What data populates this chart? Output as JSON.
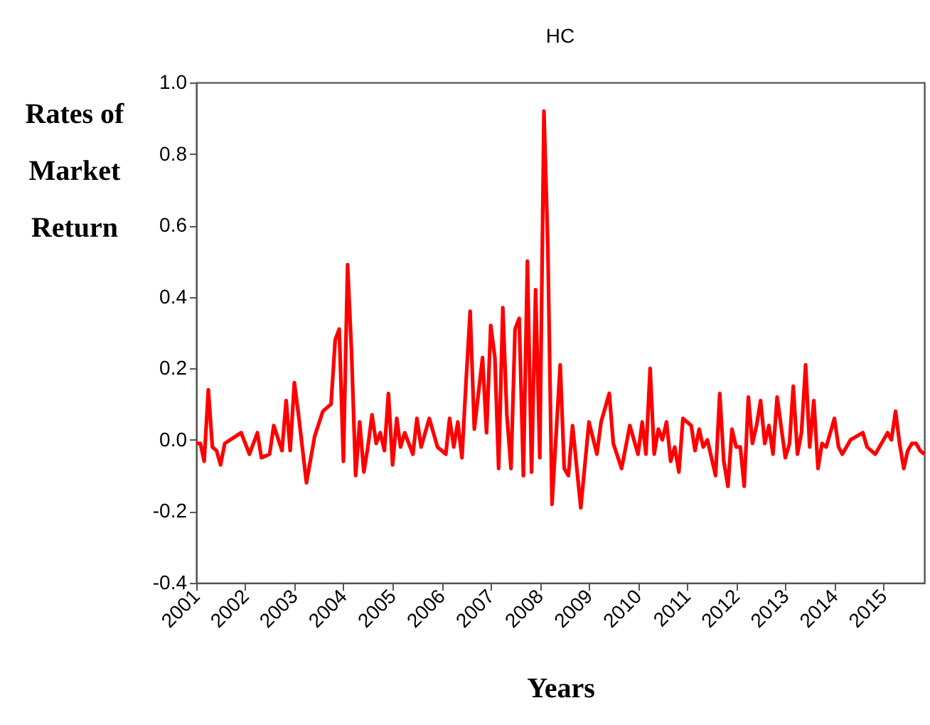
{
  "chart_data": {
    "type": "line",
    "title": "HC",
    "xlabel": "Years",
    "ylabel": "Rates of Market Return",
    "x": [
      "2001-01",
      "2001-02",
      "2001-03",
      "2001-04",
      "2001-05",
      "2001-06",
      "2001-07",
      "2001-08",
      "2001-12",
      "2002-02",
      "2002-04",
      "2002-05",
      "2002-07",
      "2002-08",
      "2002-10",
      "2002-11",
      "2002-12",
      "2003-01",
      "2003-02",
      "2003-04",
      "2003-06",
      "2003-08",
      "2003-10",
      "2003-11",
      "2003-12",
      "2004-01",
      "2004-02",
      "2004-03",
      "2004-04",
      "2004-05",
      "2004-06",
      "2004-07",
      "2004-08",
      "2004-09",
      "2004-10",
      "2004-11",
      "2004-12",
      "2005-01",
      "2005-02",
      "2005-03",
      "2005-04",
      "2005-06",
      "2005-07",
      "2005-08",
      "2005-10",
      "2005-12",
      "2006-02",
      "2006-03",
      "2006-04",
      "2006-05",
      "2006-06",
      "2006-07",
      "2006-08",
      "2006-09",
      "2006-11",
      "2006-12",
      "2007-01",
      "2007-02",
      "2007-03",
      "2007-04",
      "2007-05",
      "2007-06",
      "2007-07",
      "2007-08",
      "2007-09",
      "2007-10",
      "2007-11",
      "2007-12",
      "2008-01",
      "2008-02",
      "2008-03",
      "2008-04",
      "2008-06",
      "2008-07",
      "2008-08",
      "2008-09",
      "2008-11",
      "2009-01",
      "2009-03",
      "2009-04",
      "2009-06",
      "2009-07",
      "2009-09",
      "2009-11",
      "2010-01",
      "2010-02",
      "2010-03",
      "2010-04",
      "2010-05",
      "2010-06",
      "2010-07",
      "2010-08",
      "2010-09",
      "2010-10",
      "2010-11",
      "2010-12",
      "2011-02",
      "2011-03",
      "2011-04",
      "2011-05",
      "2011-06",
      "2011-08",
      "2011-09",
      "2011-10",
      "2011-11",
      "2011-12",
      "2012-01",
      "2012-02",
      "2012-03",
      "2012-04",
      "2012-05",
      "2012-06",
      "2012-07",
      "2012-08",
      "2012-09",
      "2012-10",
      "2012-11",
      "2013-01",
      "2013-02",
      "2013-03",
      "2013-04",
      "2013-05",
      "2013-06",
      "2013-07",
      "2013-08",
      "2013-09",
      "2013-10",
      "2013-11",
      "2014-01",
      "2014-02",
      "2014-03",
      "2014-05",
      "2014-08",
      "2014-09",
      "2014-11",
      "2015-02",
      "2015-03",
      "2015-04",
      "2015-05",
      "2015-06",
      "2015-07",
      "2015-08",
      "2015-09",
      "2015-10",
      "2015-11"
    ],
    "series": [
      {
        "color": "#ff0000",
        "values": [
          -0.01,
          -0.01,
          -0.06,
          0.14,
          -0.02,
          -0.03,
          -0.07,
          -0.01,
          0.02,
          -0.04,
          0.02,
          -0.05,
          -0.04,
          0.04,
          -0.03,
          0.11,
          -0.03,
          0.16,
          0.07,
          -0.12,
          0.01,
          0.08,
          0.1,
          0.28,
          0.31,
          -0.06,
          0.49,
          0.25,
          -0.1,
          0.05,
          -0.09,
          -0.02,
          0.07,
          -0.01,
          0.02,
          -0.03,
          0.13,
          -0.07,
          0.06,
          -0.02,
          0.02,
          -0.04,
          0.06,
          -0.02,
          0.06,
          -0.02,
          -0.04,
          0.06,
          -0.02,
          0.05,
          -0.05,
          0.16,
          0.36,
          0.03,
          0.23,
          0.02,
          0.32,
          0.23,
          -0.08,
          0.37,
          0.07,
          -0.08,
          0.31,
          0.34,
          -0.1,
          0.5,
          -0.09,
          0.42,
          -0.05,
          0.92,
          0.54,
          -0.18,
          0.21,
          -0.08,
          -0.1,
          0.04,
          -0.19,
          0.05,
          -0.04,
          0.05,
          0.13,
          -0.01,
          -0.08,
          0.04,
          -0.04,
          0.05,
          -0.04,
          0.2,
          -0.04,
          0.03,
          0.0,
          0.05,
          -0.06,
          -0.02,
          -0.09,
          0.06,
          0.04,
          -0.03,
          0.03,
          -0.02,
          0.0,
          -0.1,
          0.13,
          -0.06,
          -0.13,
          0.03,
          -0.02,
          -0.02,
          -0.13,
          0.12,
          -0.01,
          0.04,
          0.11,
          -0.01,
          0.04,
          -0.04,
          0.12,
          -0.05,
          -0.01,
          0.15,
          -0.04,
          0.02,
          0.21,
          -0.02,
          0.11,
          -0.08,
          -0.01,
          -0.02,
          0.06,
          -0.02,
          -0.04,
          0.0,
          0.02,
          -0.02,
          -0.04,
          0.02,
          0.0,
          0.08,
          -0.01,
          -0.08,
          -0.03,
          -0.01,
          -0.01,
          -0.03,
          -0.04
        ]
      }
    ],
    "xlim": [
      "2001-01",
      "2015-11"
    ],
    "xticks": [
      "2001",
      "2002",
      "2003",
      "2004",
      "2005",
      "2006",
      "2007",
      "2008",
      "2009",
      "2010",
      "2011",
      "2012",
      "2013",
      "2014",
      "2015"
    ],
    "ylim": [
      -0.4,
      1.0
    ],
    "yticks": [
      {
        "value": -0.4,
        "label": "-0.4"
      },
      {
        "value": -0.2,
        "label": "-0.2"
      },
      {
        "value": 0,
        "label": "0.0"
      },
      {
        "value": 0.2,
        "label": "0.2"
      },
      {
        "value": 0.4,
        "label": "0.4"
      },
      {
        "value": 0.6,
        "label": "0.6"
      },
      {
        "value": 0.8,
        "label": "0.8"
      },
      {
        "value": 1,
        "label": "1.0"
      }
    ],
    "grid": false,
    "legend": false
  }
}
